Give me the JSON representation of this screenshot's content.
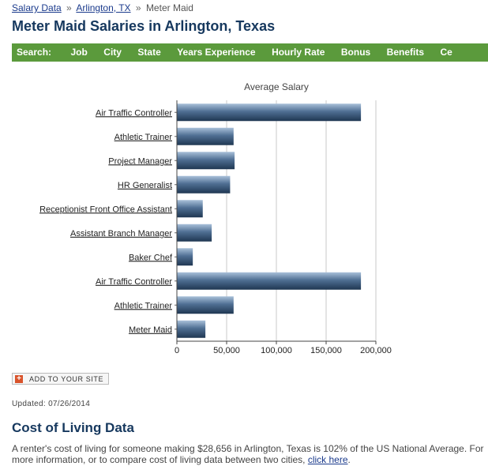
{
  "breadcrumb": {
    "salary_data": "Salary Data",
    "separator": "»",
    "location": "Arlington, TX",
    "current": "Meter Maid"
  },
  "page_title": "Meter Maid Salaries in Arlington, Texas",
  "search_bar": {
    "lead": "Search:",
    "items": [
      "Job",
      "City",
      "State",
      "Years Experience",
      "Hourly Rate",
      "Bonus",
      "Benefits",
      "Ce"
    ]
  },
  "chart_data": {
    "type": "bar",
    "orientation": "horizontal",
    "title": "Average Salary",
    "categories": [
      "Air Traffic Controller",
      "Athletic Trainer",
      "Project Manager",
      "HR Generalist",
      "Receptionist Front Office Assistant",
      "Assistant Branch Manager",
      "Baker Chef",
      "Air Traffic Controller",
      "Athletic Trainer",
      "Meter Maid"
    ],
    "values": [
      185000,
      57000,
      58000,
      53500,
      26000,
      35000,
      16000,
      185000,
      57000,
      28656
    ],
    "xlim": [
      0,
      200000
    ],
    "xticks": [
      0,
      50000,
      100000,
      150000,
      200000
    ],
    "xtick_labels": [
      "0",
      "50,000",
      "100,000",
      "150,000",
      "200,000"
    ],
    "grid": true,
    "bar_color": "#4f6f93"
  },
  "add_to_site": "ADD TO YOUR SITE",
  "updated": "Updated: 07/26/2014",
  "cost_of_living": {
    "title": "Cost of Living Data",
    "text_before": "A renter's cost of living for someone making $28,656 in Arlington, Texas is 102% of the US National Average. For more information, or to compare cost of living data between two cities, ",
    "link": "click here",
    "text_after": "."
  }
}
